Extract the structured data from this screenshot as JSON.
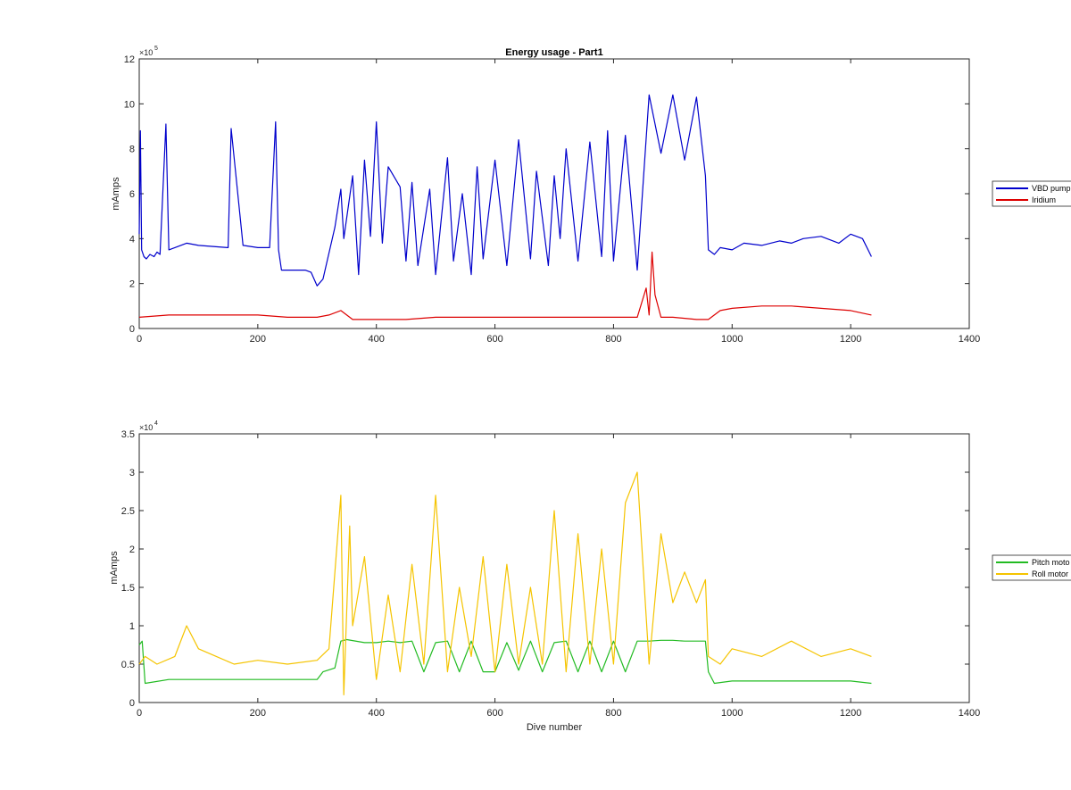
{
  "chart_data": [
    {
      "type": "line",
      "title": "Energy usage - Part1",
      "xlabel": "",
      "ylabel": "mAmps",
      "xlim": [
        0,
        1400
      ],
      "ylim": [
        0,
        12
      ],
      "y_multiplier": "×10",
      "y_exponent": "5",
      "x_ticks": [
        0,
        200,
        400,
        600,
        800,
        1000,
        1200,
        1400
      ],
      "y_ticks": [
        0,
        2,
        4,
        6,
        8,
        10,
        12
      ],
      "grid": false,
      "legend_position": "right",
      "series": [
        {
          "name": "VBD pump",
          "color": "#0000cc",
          "x": [
            0,
            2,
            4,
            8,
            12,
            18,
            25,
            30,
            35,
            45,
            50,
            60,
            80,
            100,
            150,
            155,
            175,
            200,
            220,
            230,
            235,
            240,
            260,
            280,
            290,
            300,
            310,
            330,
            340,
            345,
            360,
            370,
            380,
            390,
            400,
            410,
            420,
            440,
            450,
            460,
            470,
            490,
            500,
            520,
            530,
            545,
            560,
            570,
            580,
            600,
            620,
            640,
            660,
            670,
            690,
            700,
            710,
            720,
            740,
            760,
            780,
            790,
            800,
            820,
            840,
            860,
            880,
            900,
            920,
            940,
            955,
            960,
            970,
            980,
            1000,
            1020,
            1050,
            1080,
            1100,
            1120,
            1150,
            1180,
            1200,
            1220,
            1235
          ],
          "values": [
            4.2,
            8.8,
            3.5,
            3.2,
            3.1,
            3.3,
            3.2,
            3.4,
            3.3,
            9.1,
            3.5,
            3.6,
            3.8,
            3.7,
            3.6,
            8.9,
            3.7,
            3.6,
            3.6,
            9.2,
            3.5,
            2.6,
            2.6,
            2.6,
            2.5,
            1.9,
            2.2,
            4.5,
            6.2,
            4.0,
            6.8,
            2.4,
            7.5,
            4.1,
            9.2,
            3.8,
            7.2,
            6.3,
            3.0,
            6.5,
            2.8,
            6.2,
            2.4,
            7.6,
            3.0,
            6.0,
            2.4,
            7.2,
            3.1,
            7.5,
            2.8,
            8.4,
            3.1,
            7.0,
            2.8,
            6.8,
            4.0,
            8.0,
            3.0,
            8.3,
            3.2,
            8.8,
            3.0,
            8.6,
            2.6,
            10.4,
            7.8,
            10.4,
            7.5,
            10.3,
            6.8,
            3.5,
            3.3,
            3.6,
            3.5,
            3.8,
            3.7,
            3.9,
            3.8,
            4.0,
            4.1,
            3.8,
            4.2,
            4.0,
            3.2
          ]
        },
        {
          "name": "Iridium",
          "color": "#dd0000",
          "x": [
            0,
            50,
            100,
            150,
            200,
            250,
            300,
            320,
            340,
            360,
            400,
            450,
            500,
            550,
            600,
            650,
            700,
            750,
            800,
            840,
            855,
            860,
            865,
            870,
            880,
            900,
            940,
            960,
            980,
            1000,
            1050,
            1100,
            1150,
            1200,
            1235
          ],
          "values": [
            0.5,
            0.6,
            0.6,
            0.6,
            0.6,
            0.5,
            0.5,
            0.6,
            0.8,
            0.4,
            0.4,
            0.4,
            0.5,
            0.5,
            0.5,
            0.5,
            0.5,
            0.5,
            0.5,
            0.5,
            1.8,
            0.6,
            3.4,
            1.5,
            0.5,
            0.5,
            0.4,
            0.4,
            0.8,
            0.9,
            1.0,
            1.0,
            0.9,
            0.8,
            0.6
          ]
        }
      ]
    },
    {
      "type": "line",
      "title": "",
      "xlabel": "Dive number",
      "ylabel": "mAmps",
      "xlim": [
        0,
        1400
      ],
      "ylim": [
        0,
        3.5
      ],
      "y_multiplier": "×10",
      "y_exponent": "4",
      "x_ticks": [
        0,
        200,
        400,
        600,
        800,
        1000,
        1200,
        1400
      ],
      "y_ticks": [
        0,
        0.5,
        1,
        1.5,
        2,
        2.5,
        3,
        3.5
      ],
      "grid": false,
      "legend_position": "right",
      "series": [
        {
          "name": "Pitch moto",
          "color": "#22bb22",
          "x": [
            0,
            5,
            10,
            50,
            100,
            150,
            200,
            250,
            300,
            310,
            330,
            340,
            350,
            380,
            400,
            420,
            440,
            460,
            480,
            500,
            520,
            540,
            560,
            580,
            600,
            620,
            640,
            660,
            680,
            700,
            720,
            740,
            760,
            780,
            800,
            820,
            840,
            860,
            880,
            900,
            920,
            940,
            955,
            960,
            970,
            1000,
            1050,
            1100,
            1150,
            1200,
            1235
          ],
          "values": [
            0.75,
            0.8,
            0.25,
            0.3,
            0.3,
            0.3,
            0.3,
            0.3,
            0.3,
            0.4,
            0.45,
            0.8,
            0.82,
            0.78,
            0.78,
            0.8,
            0.78,
            0.8,
            0.4,
            0.78,
            0.8,
            0.4,
            0.8,
            0.4,
            0.4,
            0.78,
            0.42,
            0.8,
            0.4,
            0.78,
            0.8,
            0.4,
            0.8,
            0.4,
            0.8,
            0.4,
            0.8,
            0.8,
            0.81,
            0.81,
            0.8,
            0.8,
            0.8,
            0.4,
            0.25,
            0.28,
            0.28,
            0.28,
            0.28,
            0.28,
            0.25
          ]
        },
        {
          "name": "Roll motor",
          "color": "#f5c400",
          "x": [
            0,
            10,
            30,
            60,
            80,
            100,
            130,
            160,
            200,
            250,
            300,
            320,
            340,
            345,
            355,
            360,
            380,
            400,
            420,
            440,
            460,
            480,
            500,
            520,
            540,
            560,
            580,
            600,
            620,
            640,
            660,
            680,
            700,
            720,
            740,
            760,
            780,
            800,
            820,
            840,
            860,
            880,
            900,
            920,
            940,
            955,
            960,
            980,
            1000,
            1050,
            1100,
            1150,
            1200,
            1235
          ],
          "values": [
            0.5,
            0.6,
            0.5,
            0.6,
            1.0,
            0.7,
            0.6,
            0.5,
            0.55,
            0.5,
            0.55,
            0.7,
            2.7,
            0.1,
            2.3,
            1.0,
            1.9,
            0.3,
            1.4,
            0.4,
            1.8,
            0.5,
            2.7,
            0.4,
            1.5,
            0.6,
            1.9,
            0.4,
            1.8,
            0.5,
            1.5,
            0.5,
            2.5,
            0.4,
            2.2,
            0.5,
            2.0,
            0.5,
            2.6,
            3.0,
            0.5,
            2.2,
            1.3,
            1.7,
            1.3,
            1.6,
            0.6,
            0.5,
            0.7,
            0.6,
            0.8,
            0.6,
            0.7,
            0.6
          ]
        }
      ]
    }
  ]
}
